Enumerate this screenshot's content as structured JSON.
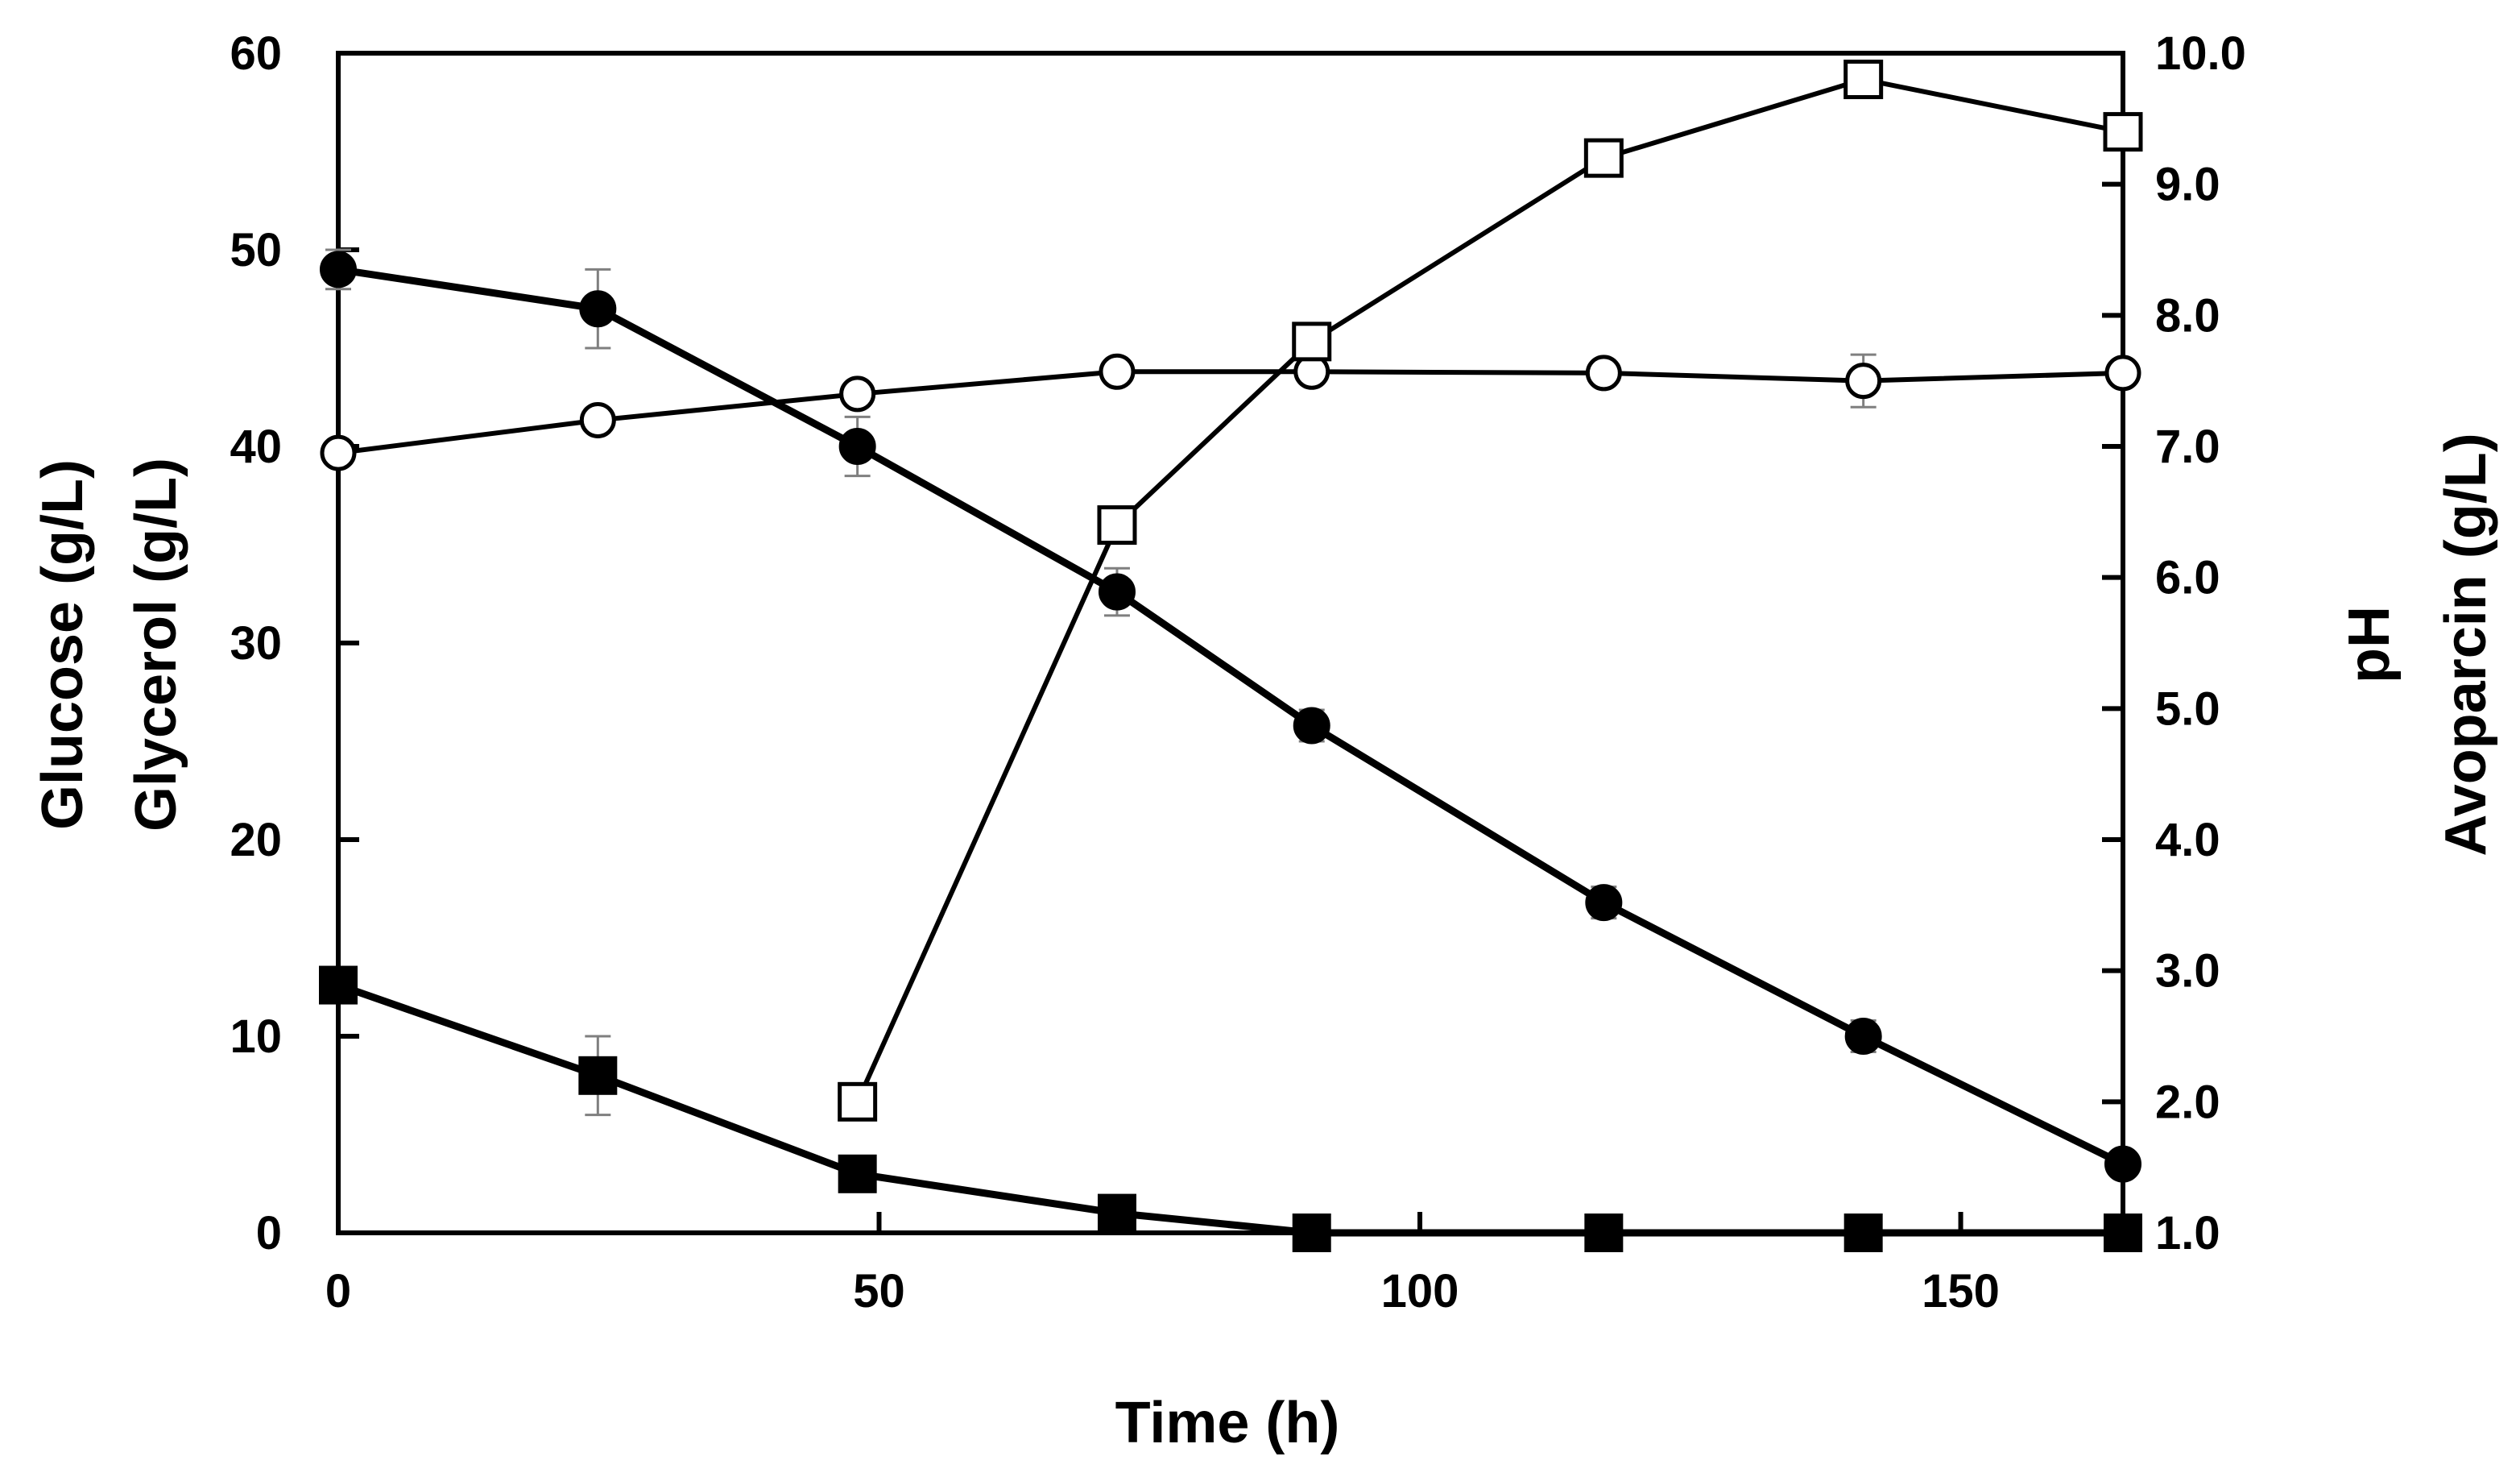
{
  "chart_data": {
    "type": "line",
    "xlabel": "Time (h)",
    "y_left_labels": [
      "Glucose (g/L)",
      "Glycerol (g/L)"
    ],
    "y_right_labels": [
      "pH",
      "Avoparcin (g/L)"
    ],
    "xlim": [
      0,
      165
    ],
    "ylim_left": [
      0,
      60
    ],
    "ylim_right": [
      1.0,
      10.0
    ],
    "x_ticks": [
      "0",
      "50",
      "100",
      "150"
    ],
    "y_left_ticks": [
      "0",
      "10",
      "20",
      "30",
      "40",
      "50",
      "60"
    ],
    "y_right_ticks": [
      "1.0",
      "2.0",
      "3.0",
      "4.0",
      "5.0",
      "6.0",
      "7.0",
      "8.0",
      "9.0",
      "10.0"
    ],
    "series": [
      {
        "name": "Glucose",
        "axis": "left",
        "marker": "filled-circle",
        "x": [
          0,
          24,
          48,
          72,
          90,
          117,
          141,
          165
        ],
        "y": [
          49,
          47,
          40,
          32.6,
          25.8,
          16.8,
          10,
          3.5
        ],
        "err": [
          1,
          2,
          1.5,
          1.2,
          0.8,
          0.8,
          0.8,
          0
        ]
      },
      {
        "name": "Glycerol",
        "axis": "left",
        "marker": "filled-square",
        "x": [
          0,
          24,
          48,
          72,
          90,
          117,
          141,
          165
        ],
        "y": [
          12.6,
          8,
          3,
          1,
          0,
          0,
          0,
          0
        ],
        "err": [
          0,
          2,
          0,
          0,
          0,
          0,
          0,
          0
        ]
      },
      {
        "name": "pH",
        "axis": "right",
        "marker": "open-circle",
        "x": [
          0,
          24,
          48,
          72,
          90,
          117,
          141,
          165
        ],
        "y": [
          6.95,
          7.2,
          7.4,
          7.57,
          7.57,
          7.56,
          7.5,
          7.56
        ],
        "err": [
          0,
          0,
          0,
          0,
          0,
          0,
          0.2,
          0
        ]
      },
      {
        "name": "Avoparcin",
        "axis": "right",
        "marker": "open-square",
        "x": [
          48,
          72,
          90,
          117,
          141,
          165
        ],
        "y": [
          2.0,
          6.4,
          7.8,
          9.2,
          9.8,
          9.4
        ],
        "err": [
          0,
          0,
          0,
          0,
          0,
          0
        ]
      }
    ]
  }
}
